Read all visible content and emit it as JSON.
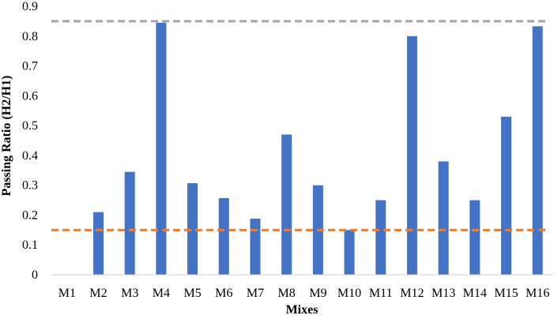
{
  "chart_data": {
    "type": "bar",
    "title": "",
    "xlabel": "Mixes",
    "ylabel": "Passing Ratio (H2/H1)",
    "ylim": [
      0,
      0.9
    ],
    "yticks": [
      "0",
      "0.1",
      "0.2",
      "0.3",
      "0.4",
      "0.5",
      "0.6",
      "0.7",
      "0.8",
      "0.9"
    ],
    "grid": false,
    "categories": [
      "M1",
      "M2",
      "M3",
      "M4",
      "M5",
      "M6",
      "M7",
      "M8",
      "M9",
      "M10",
      "M11",
      "M12",
      "M13",
      "M14",
      "M15",
      "M16"
    ],
    "values": [
      0,
      0.21,
      0.345,
      0.845,
      0.307,
      0.257,
      0.188,
      0.47,
      0.3,
      0.15,
      0.25,
      0.8,
      0.38,
      0.25,
      0.53,
      0.833
    ],
    "bar_color": "#4472C4",
    "reference_lines": [
      {
        "value": 0.85,
        "color": "#A5A5A5",
        "style": "dashed"
      },
      {
        "value": 0.15,
        "color": "#ED7D31",
        "style": "dashed"
      }
    ]
  }
}
